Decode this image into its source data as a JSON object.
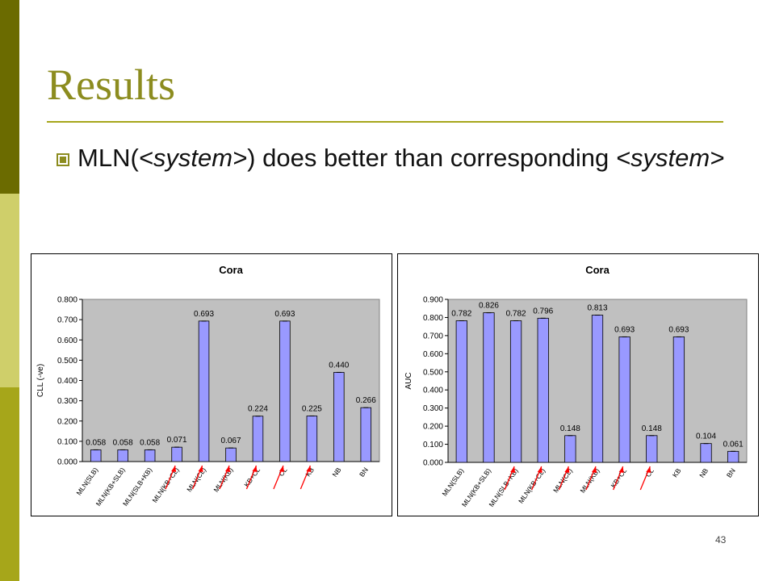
{
  "slide": {
    "title": "Results",
    "bullet": {
      "prefix": "MLN(",
      "sys1": "<system>",
      "middle": ") does better than corresponding",
      "sys2": "<system>"
    },
    "page_number": "43",
    "colors": {
      "title": "#8c8c1f",
      "bar_fill": "#9999ff",
      "plot_bg": "#c0c0c0",
      "arrow": "#ff0000"
    }
  },
  "chart_data": [
    {
      "type": "bar",
      "title": "Cora",
      "ylabel": "CLL (-ve)",
      "xlabel": "",
      "ylim": [
        0,
        0.8
      ],
      "yticks": [
        "0.000",
        "0.100",
        "0.200",
        "0.300",
        "0.400",
        "0.500",
        "0.600",
        "0.700",
        "0.800"
      ],
      "categories": [
        "MLN(SLB)",
        "MLN(KB+SLB)",
        "MLN(SLB+KB)",
        "MLN(KB+CL)",
        "MLN(CL)",
        "MLN(KB)",
        "KB+CL",
        "CL",
        "KB",
        "NB",
        "BN"
      ],
      "values": [
        0.058,
        0.058,
        0.058,
        0.071,
        0.693,
        0.067,
        0.224,
        0.693,
        0.225,
        0.44,
        0.266
      ],
      "value_labels": [
        "0.058",
        "0.058",
        "0.058",
        "0.071",
        "0.693",
        "0.067",
        "0.224",
        "0.693",
        "0.225",
        "0.440",
        "0.266"
      ],
      "annotation_arrows_at": [
        3,
        4,
        5,
        6,
        7,
        8
      ],
      "grid": false,
      "legend": "none"
    },
    {
      "type": "bar",
      "title": "Cora",
      "ylabel": "AUC",
      "xlabel": "",
      "ylim": [
        0,
        0.9
      ],
      "yticks": [
        "0.000",
        "0.100",
        "0.200",
        "0.300",
        "0.400",
        "0.500",
        "0.600",
        "0.700",
        "0.800",
        "0.900"
      ],
      "categories": [
        "MLN(SLB)",
        "MLN(KB+SLB)",
        "MLN(SLB+KB)",
        "MLN(KB+CL)",
        "MLN(CL)",
        "MLN(KB)",
        "KB+CL",
        "CL",
        "KB",
        "NB",
        "BN"
      ],
      "values": [
        0.782,
        0.826,
        0.782,
        0.796,
        0.148,
        0.813,
        0.693,
        0.148,
        0.693,
        0.104,
        0.061
      ],
      "value_labels": [
        "0.782",
        "0.826",
        "0.782",
        "0.796",
        "0.148",
        "0.813",
        "0.693",
        "0.148",
        "0.693",
        "0.104",
        "0.061"
      ],
      "annotation_arrows_at": [
        2,
        3,
        4,
        5,
        6,
        7
      ],
      "grid": false,
      "legend": "none"
    }
  ]
}
